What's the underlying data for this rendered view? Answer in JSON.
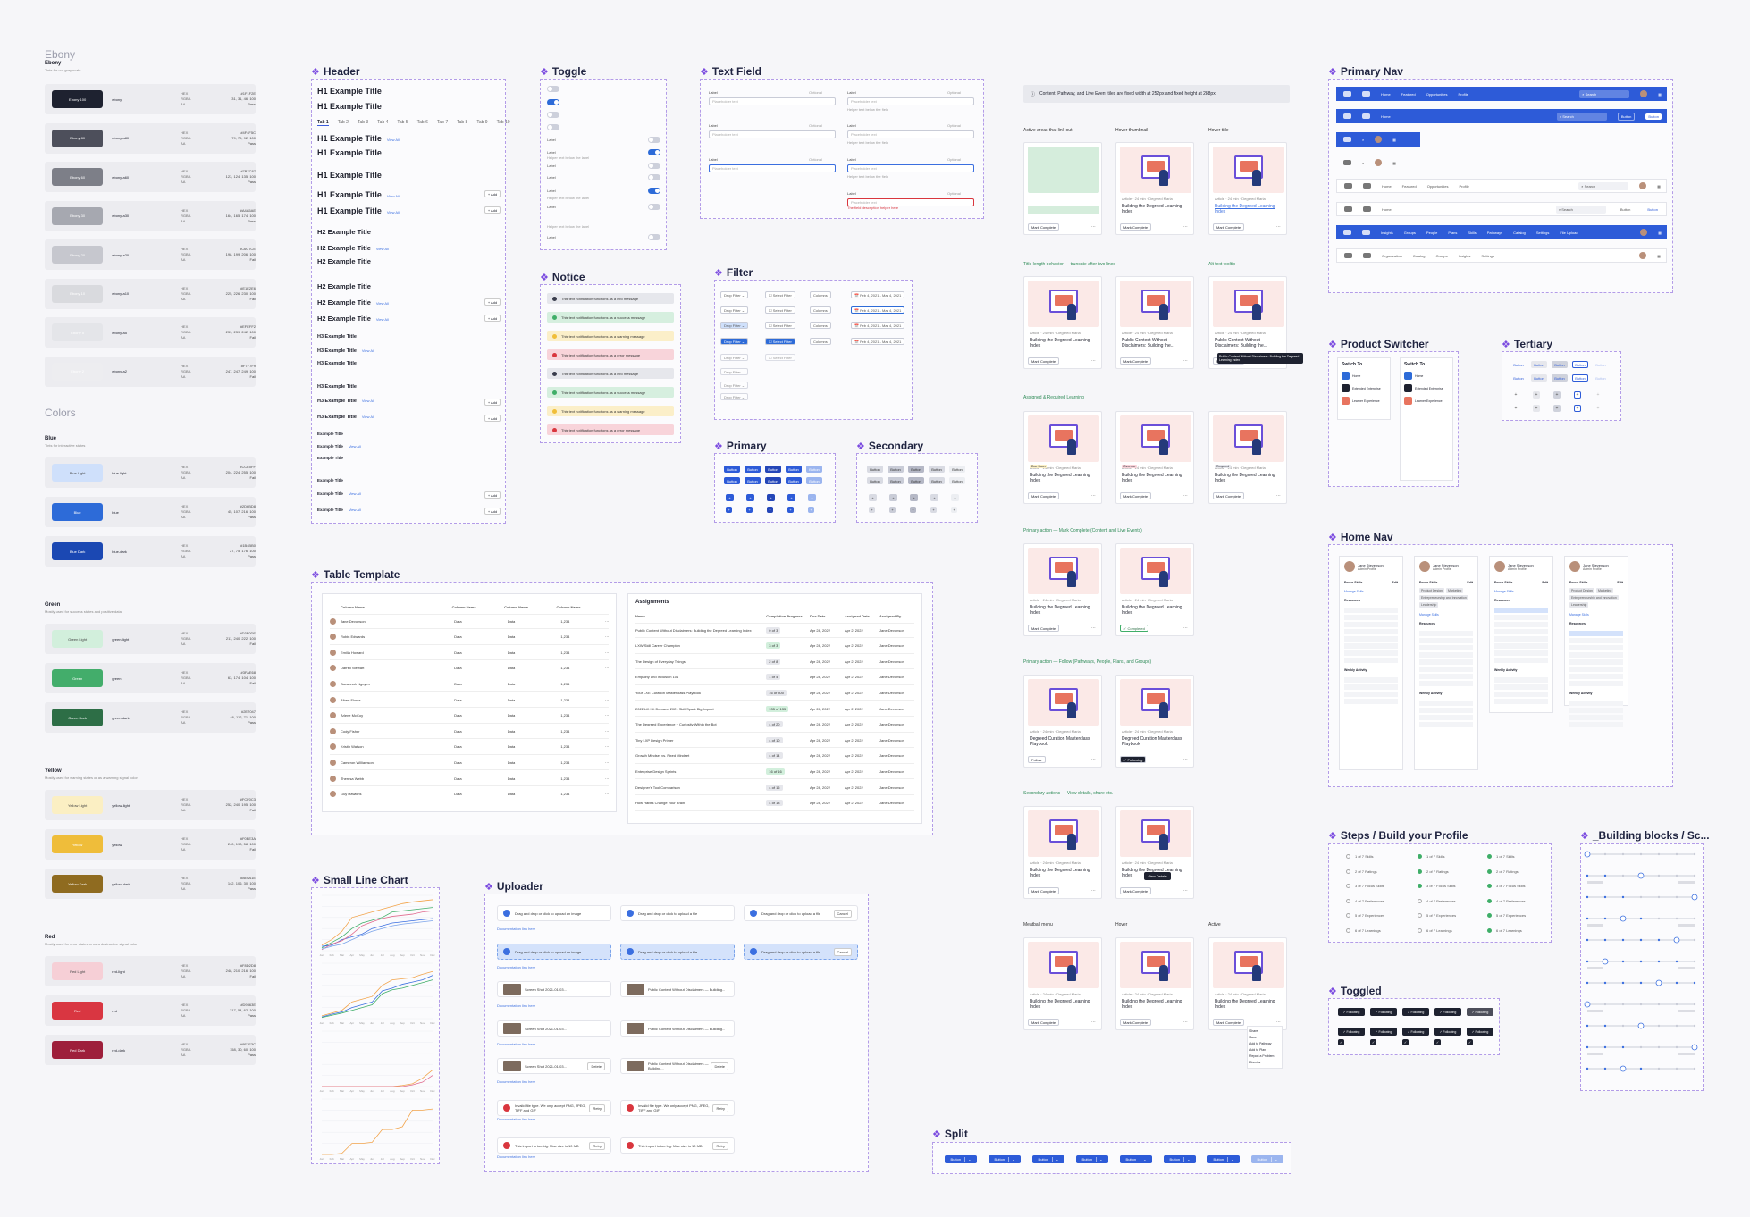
{
  "ebony": {
    "title": "Ebony",
    "group": "Ebony",
    "group_sub": "Tints for our gray scale",
    "swatches": [
      {
        "chip": "Ebony 100",
        "name": "ebony",
        "hex": "#1F1F2E",
        "rgb": "31, 31, 46, 100",
        "pass": "Pass",
        "color": "#1e2230"
      },
      {
        "chip": "Ebony 80",
        "name": "ebony-a80",
        "hex": "#4F4F5C",
        "rgb": "79, 79, 92, 100",
        "pass": "Pass",
        "color": "#4d4f5b"
      },
      {
        "chip": "Ebony 60",
        "name": "ebony-a60",
        "hex": "#7B7C87",
        "rgb": "123, 124, 135, 100",
        "pass": "Pass",
        "color": "#7d7f88"
      },
      {
        "chip": "Ebony 30",
        "name": "ebony-a30",
        "hex": "#A4A5AE",
        "rgb": "164, 165, 174, 100",
        "pass": "Pass",
        "color": "#a6a8b0"
      },
      {
        "chip": "Ebony 20",
        "name": "ebony-a20",
        "hex": "#C6C7CE",
        "rgb": "198, 199, 206, 100",
        "pass": "Fail",
        "color": "#c6c7ce"
      },
      {
        "chip": "Ebony 10",
        "name": "ebony-a10",
        "hex": "#E1E2E6",
        "rgb": "225, 226, 230, 100",
        "pass": "Fail",
        "color": "#d9dade"
      },
      {
        "chip": "Ebony 5",
        "name": "ebony-a5",
        "hex": "#EFEFF2",
        "rgb": "239, 239, 242, 100",
        "pass": "Fail",
        "color": "#e4e5e9"
      },
      {
        "chip": "Ebony 2",
        "name": "ebony-a2",
        "hex": "#F7F7F9",
        "rgb": "247, 247, 249, 100",
        "pass": "Fail",
        "color": "#ededf0"
      }
    ]
  },
  "colors": {
    "title": "Colors",
    "groups": [
      {
        "name": "Blue",
        "sub": "Tints for interactive states",
        "swatches": [
          {
            "chip": "Blue Light",
            "name": "blue-light",
            "hex": "#CCE0FF",
            "rgb": "204, 224, 255, 100",
            "pass": "Fail",
            "color": "#cfe0fb",
            "dark": true
          },
          {
            "chip": "Blue",
            "name": "blue",
            "hex": "#2D6BD8",
            "rgb": "45, 107, 216, 100",
            "pass": "Pass",
            "color": "#2d6bd8"
          },
          {
            "chip": "Blue Dark",
            "name": "blue-dark",
            "hex": "#1B4BB0",
            "rgb": "27, 75, 176, 100",
            "pass": "Pass",
            "color": "#1b48b3"
          }
        ]
      },
      {
        "name": "Green",
        "sub": "Mostly used for success states and positive data",
        "swatches": [
          {
            "chip": "Green Light",
            "name": "green-light",
            "hex": "#D3F0DE",
            "rgb": "211, 240, 222, 100",
            "pass": "Fail",
            "color": "#d2efdc",
            "dark": true
          },
          {
            "chip": "Green",
            "name": "green",
            "hex": "#3FAE68",
            "rgb": "63, 174, 104, 100",
            "pass": "Fail",
            "color": "#43ad6b"
          },
          {
            "chip": "Green Dark",
            "name": "green-dark",
            "hex": "#2E7047",
            "rgb": "46, 112, 71, 100",
            "pass": "Pass",
            "color": "#2d6e46"
          }
        ]
      },
      {
        "name": "Yellow",
        "sub": "Mostly used for warning states or as a warning signal color",
        "swatches": [
          {
            "chip": "Yellow Light",
            "name": "yellow-light",
            "hex": "#FCF0C3",
            "rgb": "252, 240, 195, 100",
            "pass": "Fail",
            "color": "#fbefc3",
            "dark": true
          },
          {
            "chip": "Yellow",
            "name": "yellow",
            "hex": "#F0BE3A",
            "rgb": "240, 190, 58, 100",
            "pass": "Fail",
            "color": "#efbd3a"
          },
          {
            "chip": "Yellow Dark",
            "name": "yellow-dark",
            "hex": "#8E6A1E",
            "rgb": "142, 106, 30, 100",
            "pass": "Pass",
            "color": "#8f6b20"
          }
        ]
      },
      {
        "name": "Red",
        "sub": "Mostly used for error states or as a destructive signal color",
        "swatches": [
          {
            "chip": "Red Light",
            "name": "red-light",
            "hex": "#F8D2D8",
            "rgb": "248, 210, 216, 100",
            "pass": "Fail",
            "color": "#f6cfd6",
            "dark": true
          },
          {
            "chip": "Red",
            "name": "red",
            "hex": "#D9363E",
            "rgb": "217, 54, 62, 100",
            "pass": "Pass",
            "color": "#d93641"
          },
          {
            "chip": "Red Dark",
            "name": "red-dark",
            "hex": "#9E1E3C",
            "rgb": "158, 30, 60, 100",
            "pass": "Pass",
            "color": "#9e1f3b"
          }
        ]
      }
    ]
  },
  "sections": {
    "header": "Header",
    "toggle": "Toggle",
    "text_field": "Text Field",
    "notice": "Notice",
    "filter": "Filter",
    "primary": "Primary",
    "secondary": "Secondary",
    "table": "Table Template",
    "small_chart": "Small Line Chart",
    "uploader": "Uploader",
    "primary_nav": "Primary Nav",
    "product_switcher": "Product Switcher",
    "tertiary": "Tertiary",
    "home_nav": "Home Nav",
    "steps": "Steps / Build your Profile",
    "building_blocks": "_Building blocks / Sc...",
    "toggled": "Toggled",
    "split": "Split"
  },
  "header_demo": {
    "h1": "H1 Example Title",
    "h2": "H2 Example Title",
    "h3": "H3 Example Title",
    "h4": "Example Title",
    "view_all": "View All",
    "add": "+ Add",
    "subtitle": "Subtitle",
    "tabs": [
      "Tab 1",
      "Tab 2",
      "Tab 3",
      "Tab 4",
      "Tab 5",
      "Tab 6",
      "Tab 7",
      "Tab 8",
      "Tab 9",
      "Tab 10"
    ]
  },
  "toggle_demo": {
    "label": "Label",
    "helper": "Helper text below the label"
  },
  "text_field": {
    "label": "Label",
    "optional": "Optional",
    "placeholder": "Placeholder text",
    "helper": "Helper text below the field",
    "error": "The field description helper here"
  },
  "notices": [
    {
      "text": "This text notification functions as a info message",
      "bg": "#e6e7ec",
      "dot": "#3a3d4c"
    },
    {
      "text": "This text notification functions as a success message",
      "bg": "#d6efdf",
      "dot": "#3fae68"
    },
    {
      "text": "This text notification functions as a warning message",
      "bg": "#fbefc9",
      "dot": "#f0be3a"
    },
    {
      "text": "This text notification functions as a error message",
      "bg": "#f8d4da",
      "dot": "#d9363e"
    },
    {
      "text": "This text notification functions as a info message",
      "bg": "#e6e7ec",
      "dot": "#3a3d4c"
    },
    {
      "text": "This text notification functions as a success message",
      "bg": "#d6efdf",
      "dot": "#3fae68"
    },
    {
      "text": "This text notification functions as a warning message",
      "bg": "#fbefc9",
      "dot": "#f0be3a"
    },
    {
      "text": "This text notification functions as a error message",
      "bg": "#f8d4da",
      "dot": "#d9363e"
    }
  ],
  "filter": {
    "drop": "Drop Filter",
    "select": "Select Filter",
    "columns": "Columns",
    "date": "Feb 4, 2021 - Mar 4, 2021"
  },
  "button_label": "Button",
  "table": {
    "headers": [
      "Column Name",
      "Column Name",
      "Column Name",
      "Column Name"
    ],
    "rows": [
      "Jane Devonson",
      "Robin Edwards",
      "Emilia Howard",
      "Darrell Stewart",
      "Savannah Nguyen",
      "Albert Flores",
      "Arlene McCoy",
      "Cody Fisher",
      "Kristin Watson",
      "Cameron Williamson",
      "Theresa Webb",
      "Guy Hawkins"
    ],
    "cell": "Data",
    "num": "1,234",
    "assign_title": "Assignments",
    "assign_headers": [
      "Name",
      "Completion Progress",
      "Due Date",
      "Assigned Date",
      "Assigned By"
    ],
    "assignments": [
      {
        "name": "Public Content Without Disclaimers: Building the Degreed Learning Index",
        "p": "0 of 3",
        "due": "Apr 28, 2022",
        "ad": "Apr 2, 2022"
      },
      {
        "name": "LXW Skill Career Champion",
        "p": "3 of 3",
        "due": "Apr 28, 2022",
        "ad": "Apr 2, 2022"
      },
      {
        "name": "The Design of Everyday Things",
        "p": "2 of 8",
        "due": "Apr 28, 2022",
        "ad": "Apr 2, 2022"
      },
      {
        "name": "Empathy and Inclusion 101",
        "p": "1 of 4",
        "due": "Apr 28, 2022",
        "ad": "Apr 2, 2022"
      },
      {
        "name": "Your LXE Curation Masterclass Playbook",
        "p": "16 of 300",
        "due": "Apr 28, 2022",
        "ad": "Apr 2, 2022"
      },
      {
        "name": "2022 Lift Hit Demand 2021 Skill Spark Big Impact",
        "p": "135 of 135",
        "due": "Apr 28, 2022",
        "ad": "Apr 2, 2022"
      },
      {
        "name": "The Degreed Experience + Curiosity Within the Bot",
        "p": "4 of 20",
        "due": "Apr 28, 2022",
        "ad": "Apr 2, 2022"
      },
      {
        "name": "Tiny LXP Design Primer",
        "p": "4 of 10",
        "due": "Apr 28, 2022",
        "ad": "Apr 2, 2022"
      },
      {
        "name": "Growth Mindset vs. Fixed Mindset",
        "p": "4 of 14",
        "due": "Apr 28, 2022",
        "ad": "Apr 2, 2022"
      },
      {
        "name": "Enterprise Design Sprints",
        "p": "16 of 16",
        "due": "Apr 28, 2022",
        "ad": "Apr 2, 2022"
      },
      {
        "name": "Designer's Tool Comparison",
        "p": "4 of 16",
        "due": "Apr 28, 2022",
        "ad": "Apr 2, 2022"
      },
      {
        "name": "How Habits Change Your Brain",
        "p": "4 of 18",
        "due": "Apr 28, 2022",
        "ad": "Apr 2, 2022"
      }
    ],
    "assigner": "Jane Devonson"
  },
  "content_tiles": {
    "banner": "Content, Pathway, and Live Event tiles are fixed width at 252px and fixed height at 288px",
    "labels": [
      "Active areas that link out",
      "Hover thumbnail",
      "Hover title",
      "Title length behavior — truncate after two lines",
      "Alt text tooltip",
      "Assigned & Required Learning",
      "Primary action — Mark Complete (Content and Live Events)",
      "Primary action — Follow (Pathways, People, Plans, and Groups)",
      "Secondary actions — View details, share etc.",
      "Meatball menu",
      "Hover",
      "Active"
    ],
    "meta": "Article · 24 min · Degreed Maria",
    "title": "Building the Degreed Learning Index",
    "long_title": "Public Content Without Disclaimers: Building the...",
    "playbook": "Degreed Curation Masterclass Playbook",
    "mark_complete": "Mark Complete",
    "completed": "✓ Completed",
    "follow": "Follow",
    "following": "✓ Following",
    "view_details": "View Details",
    "badges": [
      "Due Soon",
      "Overdue",
      "Required"
    ],
    "tooltip": "Public Content Without Disclaimers: Building the Degreed Learning Index",
    "menu": [
      "Share",
      "Save",
      "Add to Pathway",
      "Add to Plan",
      "Report a Problem",
      "Dismiss"
    ]
  },
  "primary_nav": {
    "items": [
      "Home",
      "Featured",
      "Opportunities",
      "Profile"
    ],
    "search": "Search",
    "more": [
      "Insights",
      "Groups",
      "People",
      "Plans",
      "Skills",
      "Pathways",
      "Catalog",
      "Settings",
      "File Upload"
    ],
    "org": [
      "Organization",
      "Catalog",
      "Groups",
      "Insights",
      "Settings"
    ],
    "button": "Button"
  },
  "product_switcher": {
    "title": "Switch To",
    "items": [
      "Home",
      "Extended Enterprise",
      "Learner Experience"
    ]
  },
  "home_nav": {
    "name": "Jane Stevenson",
    "role": "Admin Profile",
    "focus": "Focus Skills",
    "edit": "Edit",
    "resources": "Resources",
    "activity": "Weekly Activity",
    "manage": "Manage Skills",
    "chips": [
      "Product Design",
      "Marketing",
      "Entrepreneurship and Innovation",
      "Leadership"
    ]
  },
  "steps": {
    "items": [
      "1 of 7 Skills",
      "2 of 7 Ratings",
      "3 of 7 Focus Skills",
      "4 of 7 Preferences",
      "5 of 7 Experiences",
      "6 of 7 Learnings"
    ]
  },
  "toggled": {
    "label": "✓ Following"
  },
  "split": {
    "label": "Button"
  },
  "uploader": {
    "drag": "Drag and drop or click to upload an image",
    "drag_file": "Drag and drop or click to upload a file",
    "doc_link": "Documentation link here",
    "cancel": "Cancel",
    "delete": "Delete",
    "edit": "Edit",
    "retry": "Retry",
    "file": "Screen Shot 2021-01-03...",
    "file2": "Public Content Without Disclaimers — Building...",
    "invalid": "Invalid file type. We only accept PNG, JPEG, TIFF and GIF",
    "too_big": "This import is too big. Max size is 10 MB"
  },
  "chart_data": [
    {
      "type": "line",
      "x": [
        "Jan",
        "Feb",
        "Mar",
        "Apr",
        "May",
        "Jun",
        "Jul",
        "Aug",
        "Sep",
        "Oct",
        "Nov",
        "Dec"
      ],
      "series": [
        {
          "color": "#f2a44b",
          "values": [
            10,
            20,
            35,
            60,
            65,
            70,
            75,
            80,
            85,
            88,
            90,
            92
          ]
        },
        {
          "color": "#3fae68",
          "values": [
            5,
            15,
            25,
            40,
            50,
            55,
            60,
            70,
            72,
            74,
            76,
            78
          ]
        },
        {
          "color": "#3b6fe0",
          "values": [
            8,
            10,
            20,
            25,
            30,
            40,
            45,
            50,
            52,
            54,
            56,
            58
          ]
        },
        {
          "color": "#e06b8f",
          "values": [
            2,
            12,
            18,
            30,
            45,
            52,
            58,
            62,
            64,
            66,
            70,
            72
          ]
        },
        {
          "color": "#7aa3ea",
          "values": [
            3,
            8,
            12,
            20,
            28,
            35,
            40,
            45,
            48,
            50,
            52,
            54
          ]
        }
      ],
      "ylim": [
        0,
        100
      ]
    },
    {
      "type": "line",
      "x": [
        "Jan",
        "Feb",
        "Mar",
        "Apr",
        "May",
        "Jun",
        "Jul",
        "Aug",
        "Sep",
        "Oct",
        "Nov",
        "Dec"
      ],
      "series": [
        {
          "color": "#f2a44b",
          "values": [
            5,
            10,
            15,
            30,
            35,
            40,
            60,
            70,
            72,
            74,
            80,
            85
          ]
        },
        {
          "color": "#3b6fe0",
          "values": [
            3,
            8,
            12,
            20,
            25,
            30,
            50,
            55,
            62,
            66,
            70,
            78
          ]
        },
        {
          "color": "#3fae68",
          "values": [
            2,
            6,
            10,
            15,
            20,
            25,
            45,
            52,
            55,
            60,
            65,
            70
          ]
        }
      ],
      "ylim": [
        0,
        100
      ]
    },
    {
      "type": "line",
      "x": [
        "Jan",
        "Feb",
        "Mar",
        "Apr",
        "May",
        "Jun",
        "Jul",
        "Aug",
        "Sep",
        "Oct",
        "Nov",
        "Dec"
      ],
      "series": [
        {
          "color": "#f2a44b",
          "values": [
            0,
            0,
            0,
            0,
            0,
            0,
            0,
            0,
            2,
            5,
            15,
            30
          ]
        },
        {
          "color": "#e06b8f",
          "values": [
            0,
            0,
            0,
            0,
            0,
            0,
            0,
            0,
            0,
            3,
            8,
            20
          ]
        }
      ],
      "ylim": [
        0,
        100
      ]
    },
    {
      "type": "line",
      "x": [
        "Jan",
        "Feb",
        "Mar",
        "Apr",
        "May",
        "Jun",
        "Jul",
        "Aug",
        "Sep",
        "Oct",
        "Nov",
        "Dec"
      ],
      "series": [
        {
          "color": "#f2a44b",
          "values": [
            0,
            0,
            2,
            20,
            20,
            22,
            45,
            45,
            50,
            80,
            80,
            82
          ]
        }
      ],
      "ylim": [
        0,
        100
      ]
    }
  ]
}
